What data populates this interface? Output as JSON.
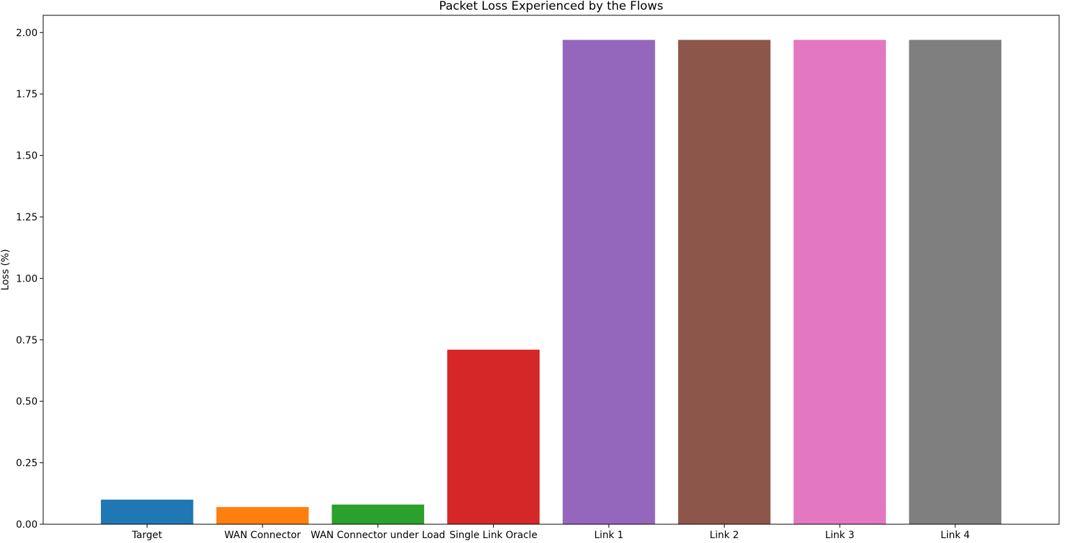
{
  "chart_data": {
    "type": "bar",
    "title": "Packet Loss Experienced by the Flows",
    "xlabel": "",
    "ylabel": "Loss (%)",
    "categories": [
      "Target",
      "WAN Connector",
      "WAN Connector under Load",
      "Single Link Oracle",
      "Link 1",
      "Link 2",
      "Link 3",
      "Link 4"
    ],
    "values": [
      0.1,
      0.07,
      0.08,
      0.71,
      1.97,
      1.97,
      1.97,
      1.97
    ],
    "colors": [
      "#1f77b4",
      "#ff7f0e",
      "#2ca02c",
      "#d62728",
      "#9467bd",
      "#8c564b",
      "#e377c2",
      "#7f7f7f"
    ],
    "ylim": [
      0,
      2.07
    ],
    "yticks": [
      0.0,
      0.25,
      0.5,
      0.75,
      1.0,
      1.25,
      1.5,
      1.75,
      2.0
    ],
    "ytick_labels": [
      "0.00",
      "0.25",
      "0.50",
      "0.75",
      "1.00",
      "1.25",
      "1.50",
      "1.75",
      "2.00"
    ],
    "grid": false,
    "legend": "none"
  }
}
